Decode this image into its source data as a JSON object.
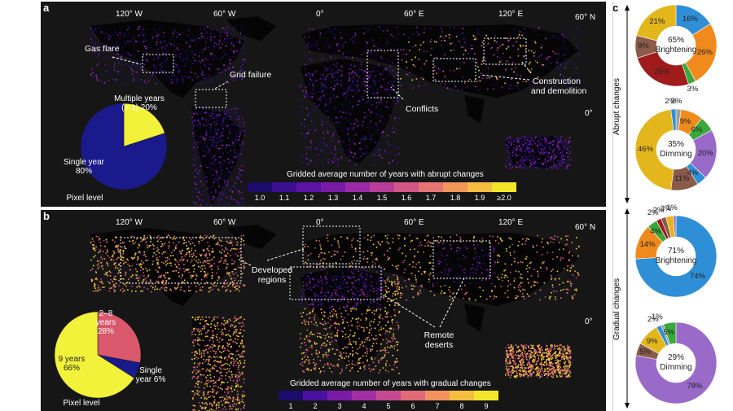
{
  "panel_a": {
    "label": "a",
    "lon_labels": [
      "120° W",
      "60° W",
      "0°",
      "60° E",
      "120° E",
      "60° N"
    ],
    "lat_label": "0°",
    "annotations": {
      "gas_flare": "Gas flare",
      "grid_failure": "Grid failure",
      "conflicts": "Conflicts",
      "construction": "Construction",
      "demolition": "and demolition"
    },
    "pie": {
      "multiple_line1": "Multiple years",
      "multiple_line2": "(> 1) 20%",
      "single_line1": "Single year",
      "single_line2": "80%",
      "caption": "Pixel level"
    },
    "colorbar": {
      "title": "Gridded average number of years with abrupt changes",
      "ticks": [
        "1.0",
        "1.1",
        "1.2",
        "1.3",
        "1.4",
        "1.5",
        "1.6",
        "1.7",
        "1.8",
        "1.9",
        "≥2.0"
      ],
      "colors": [
        "#1b0c6b",
        "#3b0f8f",
        "#5a14a3",
        "#7a1ba8",
        "#9b2aa6",
        "#b83d98",
        "#d05787",
        "#e47572",
        "#f0975a",
        "#f4bd41",
        "#f3e62a"
      ]
    }
  },
  "panel_b": {
    "label": "b",
    "lon_labels": [
      "120° W",
      "60° W",
      "0°",
      "60° E",
      "120° E",
      "60° N"
    ],
    "lat_label": "0°",
    "annotations": {
      "developed1": "Developed",
      "developed2": "regions",
      "remote1": "Remote",
      "remote2": "deserts"
    },
    "pie": {
      "mid_line1": "2–8",
      "mid_line2": "years",
      "mid_line3": "28%",
      "nine_line1": "9 years",
      "nine_line2": "66%",
      "single_line1": "Single",
      "single_line2": "year 6%",
      "caption": "Pixel level"
    },
    "colorbar": {
      "title": "Gridded average number of years with gradual changes",
      "ticks": [
        "1",
        "2",
        "3",
        "4",
        "5",
        "6",
        "7",
        "8",
        "9"
      ],
      "colors": [
        "#1b0c6b",
        "#4a10a0",
        "#7a1ba8",
        "#a32ea3",
        "#c64a8f",
        "#e06a78",
        "#f0935c",
        "#f5bf3e",
        "#f3e62a"
      ]
    }
  },
  "panel_c": {
    "label": "c",
    "abrupt_label": "Abrupt changes",
    "gradual_label": "Gradual changes"
  },
  "chart_data": [
    {
      "type": "pie",
      "title": "Pixel level",
      "labels": [
        "Single year",
        "Multiple years (> 1)"
      ],
      "values": [
        80,
        20
      ],
      "colors": [
        "#1a1a8c",
        "#f2f23a"
      ]
    },
    {
      "type": "pie",
      "title": "Pixel level",
      "labels": [
        "9 years",
        "2–8 years",
        "Single year"
      ],
      "values": [
        66,
        28,
        6
      ],
      "colors": [
        "#f2f23a",
        "#d9586b",
        "#1a1a8c"
      ]
    },
    {
      "type": "pie",
      "center": [
        "65%",
        "Brightening"
      ],
      "labels": [
        "16%",
        "26%",
        "3%",
        "25%",
        "9%",
        "21%"
      ],
      "values": [
        16,
        26,
        3,
        25,
        9,
        21
      ],
      "colors": [
        "#2f8fd6",
        "#f08a1c",
        "#3aa83a",
        "#a01c1c",
        "#8a5a4a",
        "#e3b71c"
      ]
    },
    {
      "type": "pie",
      "center": [
        "35%",
        "Dimming"
      ],
      "labels": [
        "2%",
        "9%",
        "6%",
        "20%",
        "4%",
        "11%",
        "46%",
        "2%"
      ],
      "values": [
        2,
        9,
        6,
        20,
        4,
        11,
        46,
        2
      ],
      "colors": [
        "#9e9e9e",
        "#f08a1c",
        "#3aa83a",
        "#9a6ac8",
        "#2f8fd6",
        "#8a5a4a",
        "#e3b71c",
        "#2f8fd6"
      ]
    },
    {
      "type": "pie",
      "center": [
        "71%",
        "Brightening"
      ],
      "labels": [
        "74%",
        "14%",
        "4%",
        "2%",
        "2%",
        "3%",
        "1%"
      ],
      "values": [
        74,
        14,
        4,
        2,
        2,
        3,
        1
      ],
      "colors": [
        "#2f8fd6",
        "#f08a1c",
        "#3aa83a",
        "#a01c1c",
        "#8a5a4a",
        "#e3b71c",
        "#9a6ac8"
      ]
    },
    {
      "type": "pie",
      "center": [
        "29%",
        "Dimming"
      ],
      "labels": [
        "78%",
        "5%",
        "9%",
        "2%",
        "1%",
        "5%"
      ],
      "values": [
        78,
        5,
        9,
        2,
        1,
        5
      ],
      "colors": [
        "#9a6ac8",
        "#8a5a4a",
        "#e3b71c",
        "#2f8fd6",
        "#9e9e9e",
        "#3aa83a"
      ]
    }
  ]
}
